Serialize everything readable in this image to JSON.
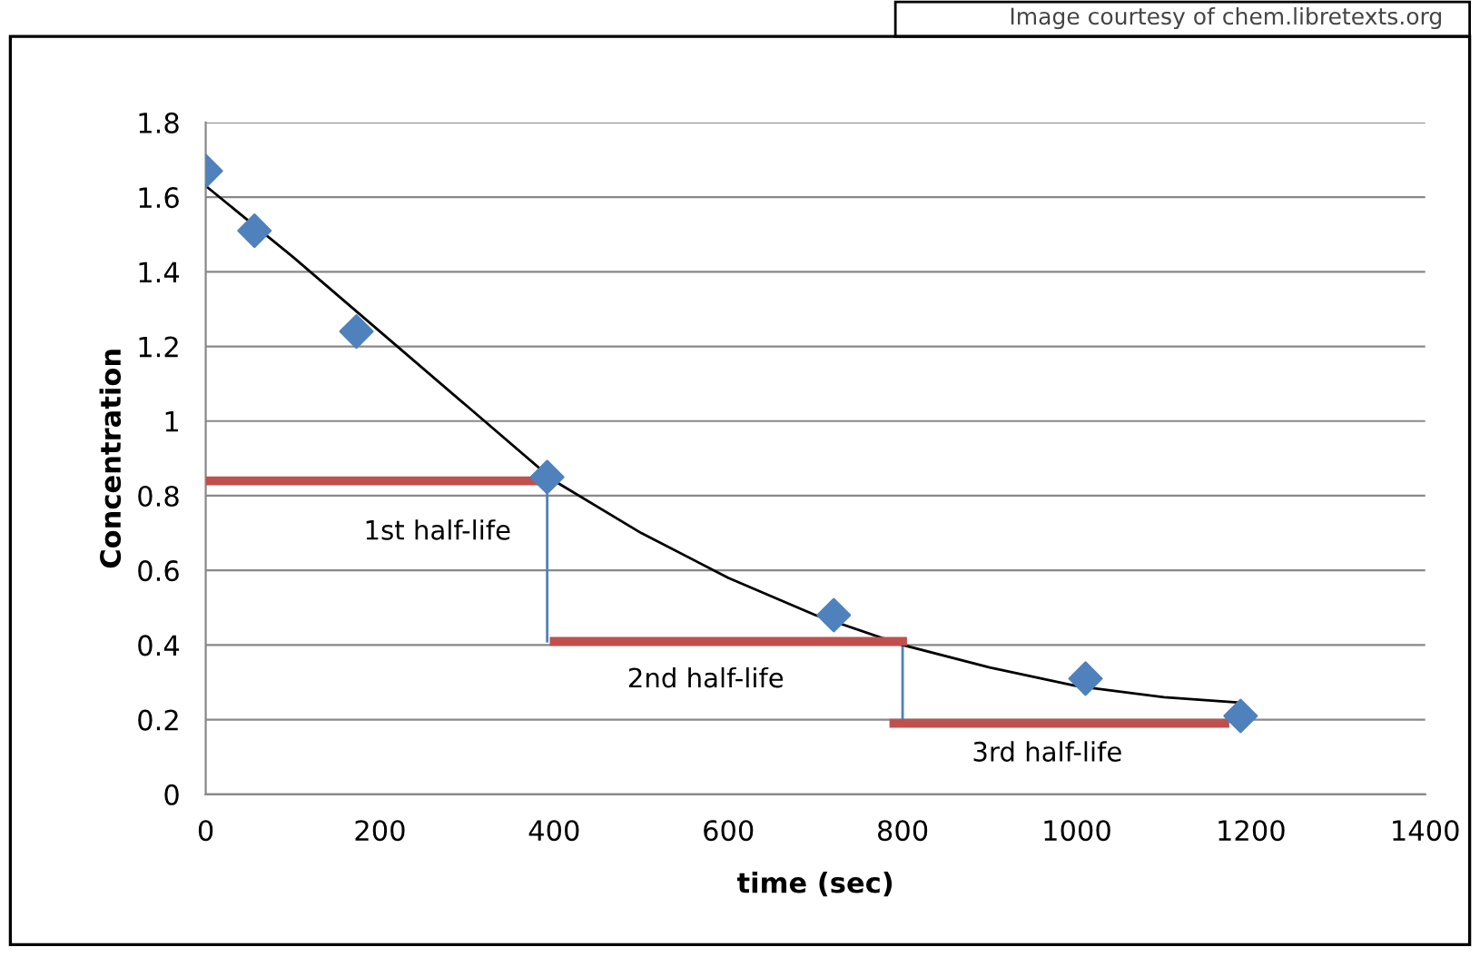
{
  "chart_data": {
    "type": "scatter",
    "xlabel": "time (sec)",
    "ylabel": "Concentration",
    "xlim": [
      0,
      1400
    ],
    "xticks": [
      0,
      200,
      400,
      600,
      800,
      1000,
      1200,
      1400
    ],
    "ylim": [
      0,
      1.8
    ],
    "yticks": [
      0,
      0.2,
      0.4,
      0.6,
      0.8,
      1,
      1.2,
      1.4,
      1.6,
      1.8
    ],
    "grid": "y",
    "series": [
      {
        "marker": "diamond",
        "color": "#4f81bd",
        "x": [
          0,
          56,
          173,
          392,
          721,
          1010,
          1188
        ],
        "values": [
          1.67,
          1.51,
          1.24,
          0.85,
          0.48,
          0.31,
          0.21
        ]
      },
      {
        "type": "line",
        "marker": "none",
        "color": "#000000",
        "x": [
          0,
          100,
          200,
          300,
          400,
          500,
          600,
          700,
          800,
          900,
          1000,
          1100,
          1190
        ],
        "values": [
          1.63,
          1.44,
          1.24,
          1.04,
          0.84,
          0.7,
          0.58,
          0.48,
          0.4,
          0.34,
          0.29,
          0.26,
          0.245
        ]
      },
      {
        "type": "line",
        "marker": "none",
        "color": "#c0504d",
        "x": [
          5,
          392
        ],
        "values": [
          0.84,
          0.84
        ]
      },
      {
        "type": "line",
        "marker": "none",
        "color": "#c0504d",
        "x": [
          400,
          800
        ],
        "values": [
          0.41,
          0.41
        ]
      },
      {
        "type": "line",
        "marker": "none",
        "color": "#c0504d",
        "x": [
          790,
          1170
        ],
        "values": [
          0.19,
          0.19
        ]
      }
    ],
    "annotations": [
      "1st half-life",
      "2nd half-life",
      "3rd half-life",
      "Image courtesy of chem.libretexts.org"
    ]
  }
}
